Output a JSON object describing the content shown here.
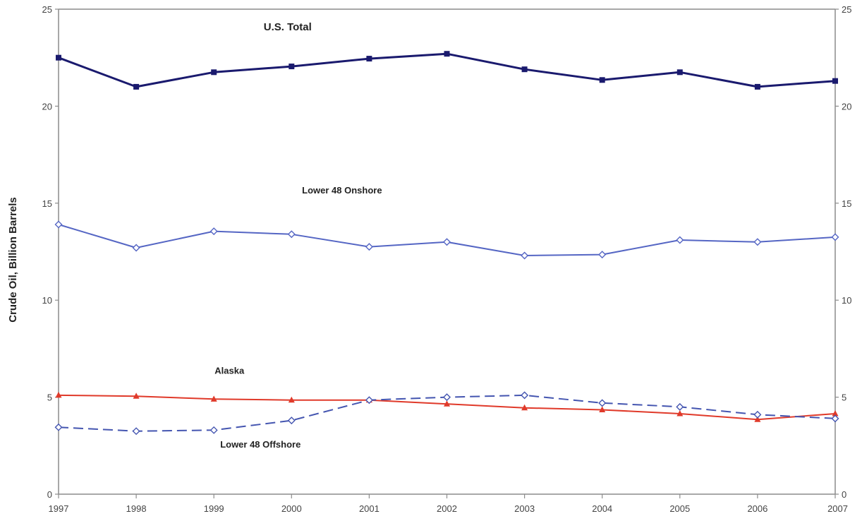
{
  "chart_data": {
    "type": "line",
    "title": "",
    "xlabel": "",
    "ylabel": "Crude Oil, Billion Barrels",
    "x": [
      1997,
      1998,
      1999,
      2000,
      2001,
      2002,
      2003,
      2004,
      2005,
      2006,
      2007
    ],
    "x_tick_labels": [
      "1997",
      "1998",
      "1999",
      "2000",
      "2001",
      "2002",
      "2003",
      "2004",
      "2005",
      "2006",
      "2007"
    ],
    "ylim": [
      0,
      25
    ],
    "y_ticks": [
      0,
      5,
      10,
      15,
      20,
      25
    ],
    "y_tick_labels": [
      "0",
      "5",
      "10",
      "15",
      "20",
      "25"
    ],
    "secondary_y_axis": true,
    "grid": false,
    "legend": "none",
    "series": [
      {
        "name": "U.S. Total",
        "label_position": {
          "x": 1999.95,
          "y": 23.9
        },
        "color": "#1a1a6e",
        "marker": "square",
        "dash": "solid",
        "values": [
          22.5,
          21.0,
          21.75,
          22.05,
          22.45,
          22.7,
          21.9,
          21.35,
          21.75,
          21.0,
          21.3
        ]
      },
      {
        "name": "Lower 48 Onshore",
        "label_position": {
          "x": 2000.65,
          "y": 15.5
        },
        "color": "#5566c4",
        "marker": "diamond-open",
        "dash": "solid",
        "values": [
          13.9,
          12.7,
          13.55,
          13.4,
          12.75,
          13.0,
          12.3,
          12.35,
          13.1,
          13.0,
          13.25
        ]
      },
      {
        "name": "Alaska",
        "label_position": {
          "x": 1999.2,
          "y": 6.2
        },
        "color": "#e03a2a",
        "marker": "triangle",
        "dash": "solid",
        "values": [
          5.1,
          5.05,
          4.9,
          4.85,
          4.85,
          4.65,
          4.45,
          4.35,
          4.15,
          3.85,
          4.15
        ]
      },
      {
        "name": "Lower 48 Offshore",
        "label_position": {
          "x": 1999.6,
          "y": 2.4
        },
        "color": "#4455b0",
        "marker": "diamond-open",
        "dash": "dashed",
        "values": [
          3.45,
          3.25,
          3.3,
          3.8,
          4.85,
          5.0,
          5.1,
          4.7,
          4.5,
          4.1,
          3.9
        ]
      }
    ]
  }
}
